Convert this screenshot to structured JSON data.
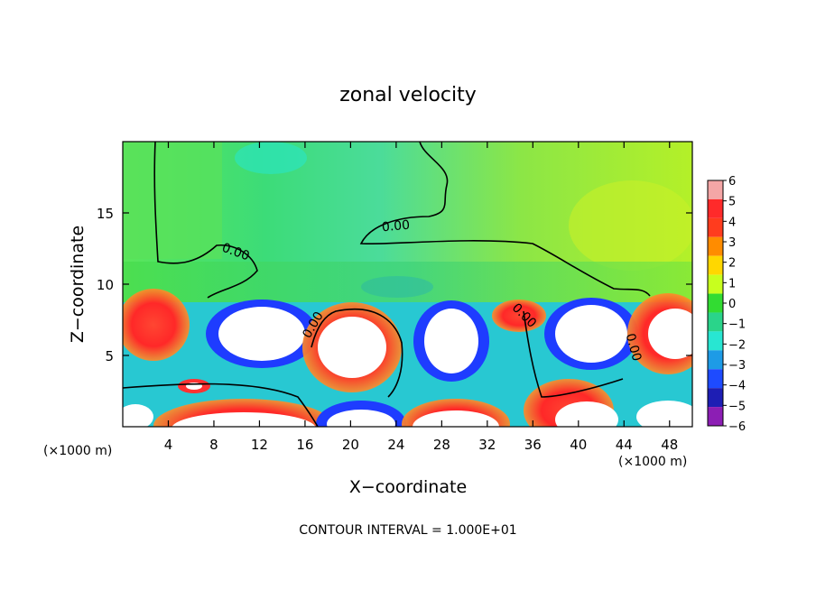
{
  "chart_data": {
    "type": "heatmap",
    "title": "zonal velocity",
    "xlabel": "X−coordinate",
    "ylabel": "Z−coordinate",
    "x_unit_note": "(×1000 m)",
    "x_unit_note_right": "(×1000 m)",
    "footer": "CONTOUR INTERVAL = 1.000E+01",
    "xlim": [
      0,
      50
    ],
    "ylim": [
      0,
      20
    ],
    "x_ticks": [
      4,
      8,
      12,
      16,
      20,
      24,
      28,
      32,
      36,
      40,
      44,
      48
    ],
    "y_ticks": [
      5,
      10,
      15
    ],
    "contour_labels": [
      {
        "text": "0.00",
        "x": 9.8,
        "y": 12.0,
        "rotate": 20
      },
      {
        "text": "0.00",
        "x": 24.0,
        "y": 13.8,
        "rotate": -5
      },
      {
        "text": "0.00",
        "x": 17.0,
        "y": 7.0,
        "rotate": -60
      },
      {
        "text": "0.00",
        "x": 35.0,
        "y": 7.6,
        "rotate": 45
      },
      {
        "text": "0.00",
        "x": 44.5,
        "y": 5.5,
        "rotate": 75
      }
    ],
    "colorbar": {
      "levels": [
        6,
        5,
        4,
        3,
        2,
        1,
        0,
        -1,
        -2,
        -3,
        -4,
        -5,
        -6
      ],
      "colors": [
        "#f4a6a6",
        "#ff2a2a",
        "#ff3c1e",
        "#ff8c00",
        "#ffd700",
        "#c8ff1e",
        "#32dc32",
        "#2ad48a",
        "#28e6d2",
        "#1e9be6",
        "#1e4bff",
        "#1e1eb4",
        "#8c1eb4"
      ]
    }
  }
}
